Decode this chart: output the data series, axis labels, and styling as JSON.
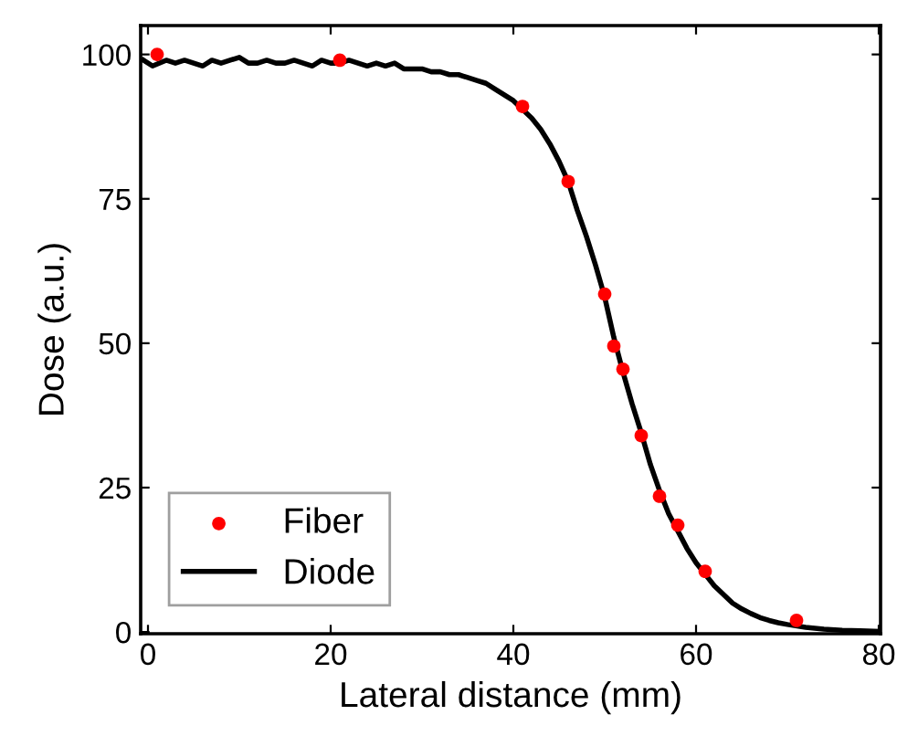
{
  "chart_data": {
    "type": "line",
    "xlabel": "Lateral distance (mm)",
    "ylabel": "Dose (a.u.)",
    "xlim": [
      -0.8,
      80.2
    ],
    "ylim": [
      -0.3,
      105
    ],
    "xticks": [
      0,
      20,
      40,
      60,
      80
    ],
    "yticks": [
      0,
      25,
      50,
      75,
      100
    ],
    "grid": false,
    "legend": "bottom left",
    "series": [
      {
        "name": "Fiber",
        "type": "scatter",
        "color": "#ff0000",
        "marker": "circle",
        "x": [
          1,
          21,
          41,
          46,
          50,
          51,
          52,
          54,
          56,
          58,
          61,
          71
        ],
        "values": [
          100,
          99,
          91,
          78,
          58.5,
          49.5,
          45.5,
          34,
          23.5,
          18.5,
          10.5,
          2
        ]
      },
      {
        "name": "Diode",
        "color": "#000000",
        "line_style": "solid",
        "x": [
          -0.5,
          0.5,
          2,
          3,
          4,
          5,
          6,
          7,
          8,
          9,
          10,
          11,
          12,
          13,
          14,
          15,
          16,
          17,
          18,
          19,
          20,
          21,
          22,
          23,
          24,
          25,
          26,
          27,
          28,
          29,
          30,
          31,
          32,
          33,
          34,
          35,
          36,
          37,
          38,
          39,
          40,
          41,
          42,
          43,
          44,
          45,
          46,
          47,
          48,
          49,
          50,
          51,
          52,
          53,
          54,
          55,
          56,
          57,
          58,
          59,
          60,
          61,
          62,
          63,
          64,
          65,
          66,
          67,
          68,
          69,
          70,
          72,
          74,
          76,
          78,
          80
        ],
        "values": [
          99,
          98,
          99,
          98.5,
          99,
          98.5,
          98,
          99,
          98.5,
          99,
          99.5,
          98.5,
          98.5,
          99,
          98.5,
          98.5,
          99,
          98.5,
          98,
          99,
          98.5,
          98.5,
          99,
          98.5,
          98,
          98.5,
          98,
          98.5,
          97.5,
          97.5,
          97.5,
          97,
          97,
          96.5,
          96.5,
          96,
          95.5,
          95,
          94,
          93,
          92,
          90.5,
          89,
          87,
          84.5,
          81.5,
          78,
          73,
          68.5,
          63.5,
          58,
          51,
          45,
          39.5,
          34.5,
          29,
          24.5,
          20.5,
          17.5,
          14.5,
          12,
          10,
          8,
          6.5,
          5,
          4,
          3.2,
          2.5,
          2,
          1.6,
          1.3,
          0.8,
          0.5,
          0.3,
          0.2,
          0.1
        ]
      }
    ]
  }
}
